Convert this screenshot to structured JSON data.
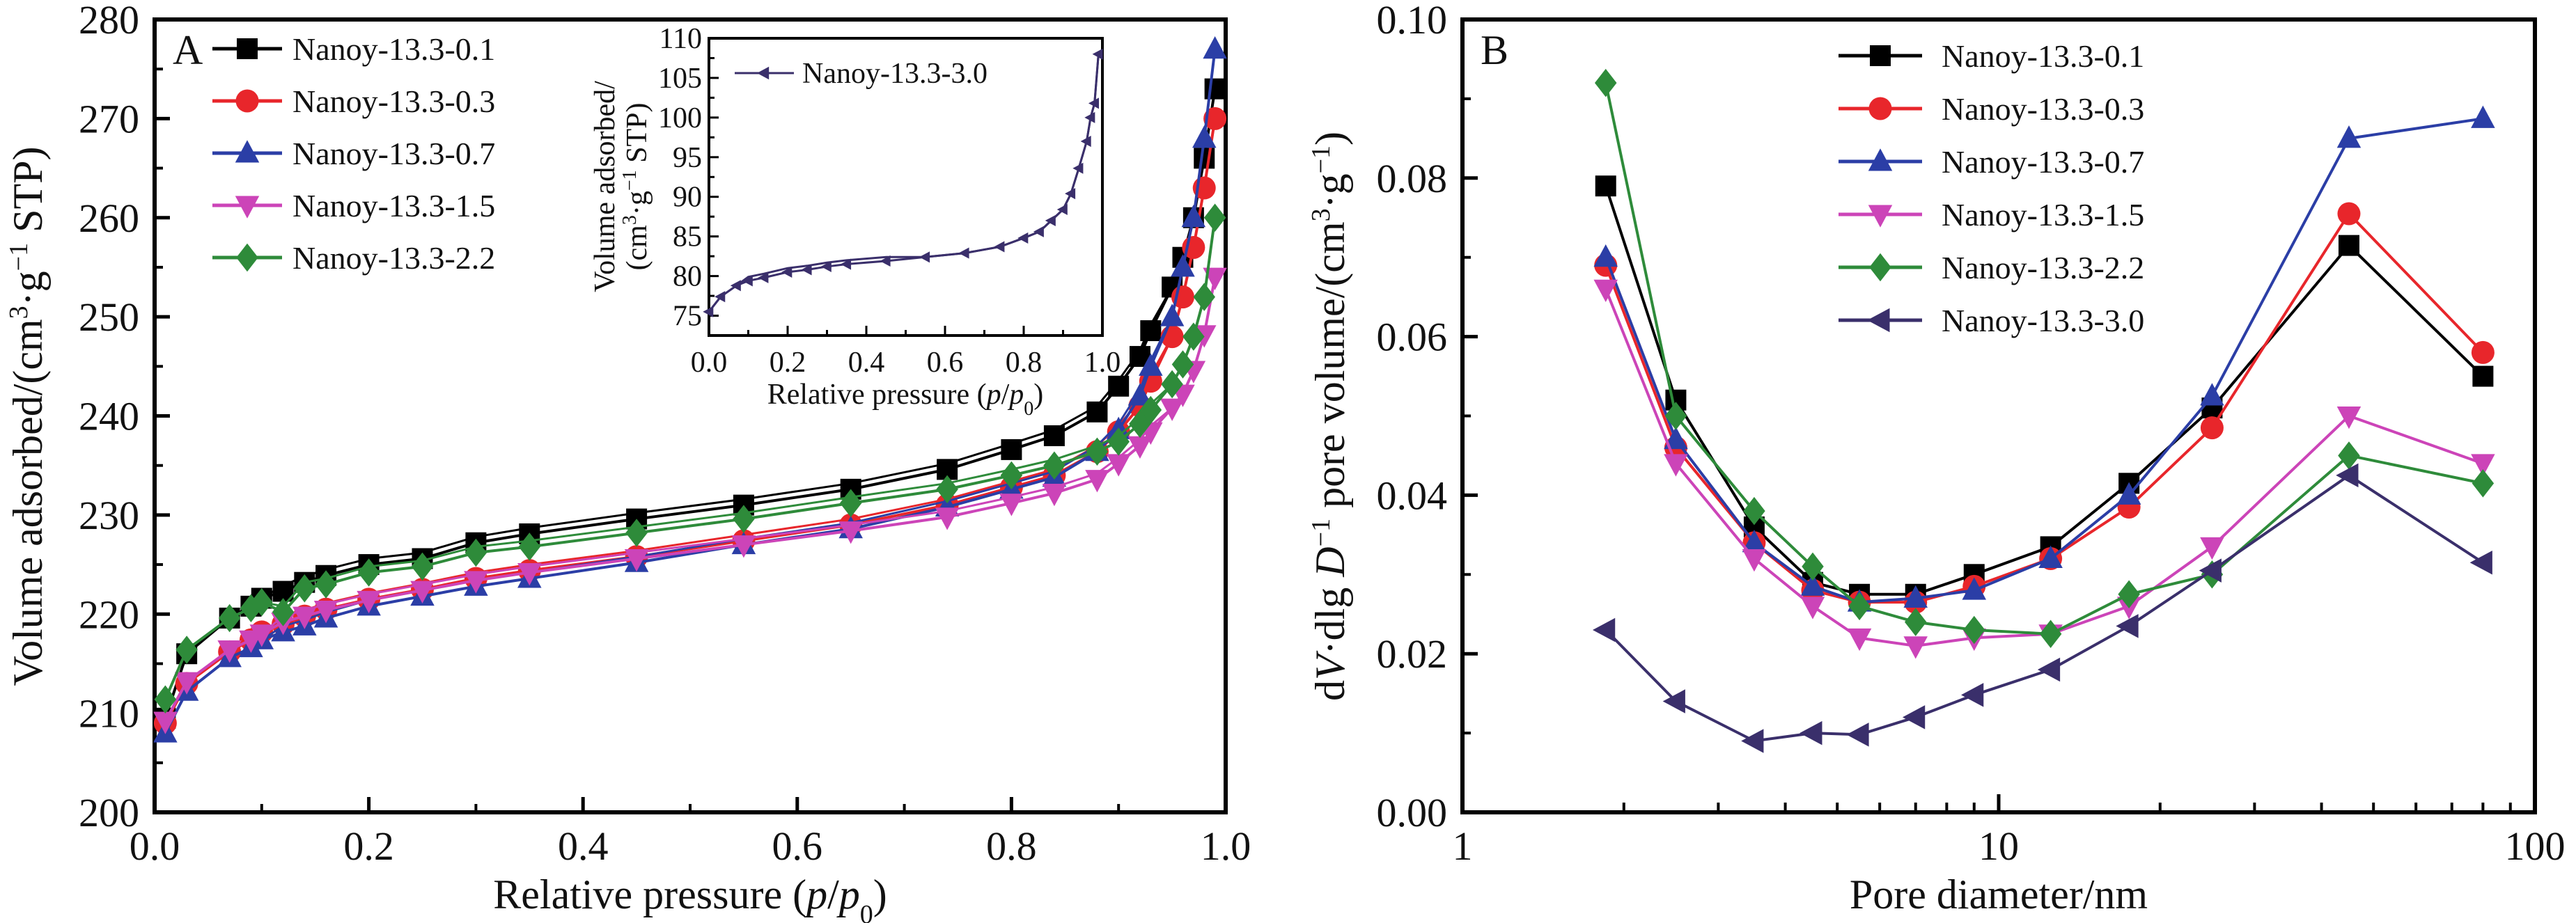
{
  "figure": {
    "panels": [
      "A",
      "B"
    ]
  },
  "chart_data": [
    {
      "panel": "A",
      "type": "line",
      "title": "",
      "xlabel": "Relative pressure (p/p0)",
      "xlabel_parts": {
        "main": "Relative pressure (",
        "italic1": "p",
        "slash": "/",
        "italic2": "p",
        "sub": "0",
        "close": ")"
      },
      "ylabel": "Volume adsorbed/(cm3·g-1 STP)",
      "ylabel_parts": {
        "main": "Volume adsorbed/(cm",
        "sup1": "3",
        "mid": "·g",
        "sup2": "−1",
        "end": " STP)"
      },
      "xlim": [
        0.0,
        1.0
      ],
      "ylim": [
        200,
        280
      ],
      "xticks": [
        "0.0",
        "0.2",
        "0.4",
        "0.6",
        "0.8",
        "1.0"
      ],
      "xtick_values": [
        0.0,
        0.2,
        0.4,
        0.6,
        0.8,
        1.0
      ],
      "yticks": [
        "200",
        "210",
        "220",
        "230",
        "240",
        "250",
        "260",
        "270",
        "280"
      ],
      "ytick_values": [
        200,
        210,
        220,
        230,
        240,
        250,
        260,
        270,
        280
      ],
      "legend_position": "top-left",
      "grid": false,
      "series": [
        {
          "name": "Nanoy-13.3-0.1",
          "color": "#000000",
          "marker": "square",
          "x": [
            0.01,
            0.03,
            0.07,
            0.09,
            0.1,
            0.12,
            0.14,
            0.16,
            0.2,
            0.25,
            0.3,
            0.35,
            0.45,
            0.55,
            0.65,
            0.74,
            0.8,
            0.84,
            0.88,
            0.9,
            0.92,
            0.93,
            0.95,
            0.96,
            0.97,
            0.98,
            0.99
          ],
          "y": [
            209.5,
            216.0,
            219.6,
            220.8,
            221.6,
            222.3,
            223.2,
            223.9,
            225.0,
            225.6,
            227.2,
            228.1,
            229.6,
            231.0,
            232.6,
            234.6,
            236.6,
            238.0,
            240.4,
            243.0,
            246.0,
            248.6,
            253.0,
            256.0,
            260.0,
            266.0,
            273.0
          ]
        },
        {
          "name": "Nanoy-13.3-0.3",
          "color": "#e8262b",
          "marker": "circle",
          "x": [
            0.01,
            0.03,
            0.07,
            0.09,
            0.1,
            0.12,
            0.14,
            0.16,
            0.2,
            0.25,
            0.3,
            0.35,
            0.45,
            0.55,
            0.65,
            0.74,
            0.8,
            0.84,
            0.88,
            0.9,
            0.92,
            0.93,
            0.95,
            0.96,
            0.97,
            0.98,
            0.99
          ],
          "y": [
            209.0,
            213.0,
            216.2,
            217.4,
            218.2,
            219.0,
            219.8,
            220.5,
            221.5,
            222.5,
            223.6,
            224.4,
            225.8,
            227.4,
            229.0,
            231.0,
            232.8,
            234.0,
            236.4,
            238.4,
            241.0,
            243.5,
            248.0,
            252.0,
            257.0,
            263.0,
            270.0
          ]
        },
        {
          "name": "Nanoy-13.3-0.7",
          "color": "#2b3ea6",
          "marker": "triangle-up",
          "x": [
            0.01,
            0.03,
            0.07,
            0.09,
            0.1,
            0.12,
            0.14,
            0.16,
            0.2,
            0.25,
            0.3,
            0.35,
            0.45,
            0.55,
            0.65,
            0.74,
            0.8,
            0.84,
            0.88,
            0.9,
            0.92,
            0.93,
            0.95,
            0.96,
            0.97,
            0.98,
            0.99
          ],
          "y": [
            208.0,
            212.2,
            215.6,
            216.6,
            217.4,
            218.2,
            218.8,
            219.6,
            220.8,
            221.8,
            222.8,
            223.6,
            225.2,
            227.0,
            228.6,
            230.8,
            232.6,
            233.8,
            236.4,
            238.6,
            242.0,
            245.0,
            250.0,
            255.0,
            260.0,
            268.0,
            277.0
          ]
        },
        {
          "name": "Nanoy-13.3-1.5",
          "color": "#cc44b8",
          "marker": "triangle-down",
          "x": [
            0.01,
            0.03,
            0.07,
            0.09,
            0.1,
            0.12,
            0.14,
            0.16,
            0.2,
            0.25,
            0.3,
            0.35,
            0.45,
            0.55,
            0.65,
            0.74,
            0.8,
            0.84,
            0.88,
            0.9,
            0.92,
            0.93,
            0.95,
            0.96,
            0.97,
            0.98,
            0.99
          ],
          "y": [
            209.2,
            213.2,
            216.4,
            217.4,
            218.0,
            219.2,
            219.8,
            220.4,
            221.4,
            222.4,
            223.4,
            224.2,
            225.6,
            227.0,
            228.4,
            229.8,
            231.2,
            232.2,
            233.6,
            235.2,
            237.0,
            238.4,
            240.8,
            242.2,
            244.6,
            248.2,
            254.0
          ]
        },
        {
          "name": "Nanoy-13.3-2.2",
          "color": "#2e8b3a",
          "marker": "diamond",
          "x": [
            0.01,
            0.03,
            0.07,
            0.09,
            0.1,
            0.12,
            0.14,
            0.16,
            0.2,
            0.25,
            0.3,
            0.35,
            0.45,
            0.55,
            0.65,
            0.74,
            0.8,
            0.84,
            0.88,
            0.9,
            0.92,
            0.93,
            0.95,
            0.96,
            0.97,
            0.98,
            0.99
          ],
          "y": [
            211.4,
            216.4,
            219.6,
            220.6,
            221.2,
            220.2,
            222.6,
            223.0,
            224.2,
            224.8,
            226.2,
            226.8,
            228.2,
            229.6,
            231.2,
            232.6,
            234.0,
            235.0,
            236.4,
            237.4,
            239.2,
            240.6,
            243.2,
            245.2,
            248.0,
            252.0,
            260.0
          ]
        }
      ],
      "inset": {
        "type": "line",
        "xlabel": "Relative pressure (p/p0)",
        "ylabel_line1": "Volume adsorbed/",
        "ylabel_line2_parts": {
          "open": "(cm",
          "sup1": "3",
          "mid": "·g",
          "sup2": "−1",
          "end": " STP)"
        },
        "xlim": [
          0.0,
          1.0
        ],
        "ylim": [
          72.5,
          110
        ],
        "xticks": [
          "0.0",
          "0.2",
          "0.4",
          "0.6",
          "0.8",
          "1.0"
        ],
        "xtick_values": [
          0.0,
          0.2,
          0.4,
          0.6,
          0.8,
          1.0
        ],
        "yticks": [
          "75",
          "80",
          "85",
          "90",
          "95",
          "100",
          "105",
          "110"
        ],
        "ytick_values": [
          75,
          80,
          85,
          90,
          95,
          100,
          105,
          110
        ],
        "legend_position": "top-left",
        "series": [
          {
            "name": "Nanoy-13.3-3.0",
            "color": "#3a2f6b",
            "marker": "triangle-left",
            "x": [
              0.0,
              0.03,
              0.07,
              0.1,
              0.14,
              0.2,
              0.25,
              0.3,
              0.35,
              0.45,
              0.55,
              0.65,
              0.74,
              0.8,
              0.84,
              0.87,
              0.9,
              0.92,
              0.94,
              0.96,
              0.97,
              0.98,
              0.99
            ],
            "y": [
              75.5,
              77.4,
              78.8,
              79.4,
              79.8,
              80.5,
              80.8,
              81.2,
              81.5,
              81.9,
              82.4,
              82.9,
              83.7,
              84.8,
              85.6,
              87.0,
              88.4,
              90.4,
              93.6,
              97.0,
              100.0,
              101.8,
              108.0
            ]
          }
        ]
      }
    },
    {
      "panel": "B",
      "type": "line",
      "title": "",
      "xlabel": "Pore diameter/nm",
      "ylabel": "dV·dlg D-1 pore volume/(cm3·g-1)",
      "ylabel_parts": {
        "a": "d",
        "V": "V",
        "b": "·dlg ",
        "D": "D",
        "sup0": "−1",
        "c": " pore volume/(cm",
        "sup1": "3",
        "d": "·g",
        "sup2": "−1",
        "e": ")"
      },
      "xscale": "log",
      "xlim": [
        1,
        100
      ],
      "ylim": [
        0.0,
        0.1
      ],
      "xticks": [
        "1",
        "10",
        "100"
      ],
      "xtick_values": [
        1,
        10,
        100
      ],
      "yticks": [
        "0.00",
        "0.02",
        "0.04",
        "0.06",
        "0.08",
        "0.10"
      ],
      "ytick_values": [
        0.0,
        0.02,
        0.04,
        0.06,
        0.08,
        0.1
      ],
      "legend_position": "top-center",
      "grid": false,
      "series": [
        {
          "name": "Nanoy-13.3-0.1",
          "color": "#000000",
          "marker": "square",
          "x": [
            1.85,
            2.5,
            3.5,
            4.5,
            5.5,
            7.0,
            9.0,
            12.5,
            17.5,
            25.0,
            45.0,
            80.0
          ],
          "y": [
            0.079,
            0.052,
            0.036,
            0.029,
            0.0275,
            0.0275,
            0.03,
            0.0335,
            0.0415,
            0.051,
            0.0715,
            0.055
          ]
        },
        {
          "name": "Nanoy-13.3-0.3",
          "color": "#e8262b",
          "marker": "circle",
          "x": [
            1.85,
            2.5,
            3.5,
            4.5,
            5.5,
            7.0,
            9.0,
            12.5,
            17.5,
            25.0,
            45.0,
            80.0
          ],
          "y": [
            0.069,
            0.046,
            0.034,
            0.028,
            0.0265,
            0.0265,
            0.0285,
            0.032,
            0.0385,
            0.0485,
            0.0755,
            0.058
          ]
        },
        {
          "name": "Nanoy-13.3-0.7",
          "color": "#2b3ea6",
          "marker": "triangle-up",
          "x": [
            1.85,
            2.5,
            3.5,
            4.5,
            5.5,
            7.0,
            9.0,
            12.5,
            17.5,
            25.0,
            45.0,
            80.0
          ],
          "y": [
            0.07,
            0.047,
            0.034,
            0.0285,
            0.0265,
            0.027,
            0.028,
            0.032,
            0.04,
            0.0525,
            0.085,
            0.0875
          ]
        },
        {
          "name": "Nanoy-13.3-1.5",
          "color": "#cc44b8",
          "marker": "triangle-down",
          "x": [
            1.85,
            2.5,
            3.5,
            4.5,
            5.5,
            7.0,
            9.0,
            12.5,
            17.5,
            25.0,
            45.0,
            80.0
          ],
          "y": [
            0.066,
            0.044,
            0.032,
            0.026,
            0.022,
            0.021,
            0.022,
            0.0225,
            0.026,
            0.0335,
            0.05,
            0.044
          ]
        },
        {
          "name": "Nanoy-13.3-2.2",
          "color": "#2e8b3a",
          "marker": "diamond",
          "x": [
            1.85,
            2.5,
            3.5,
            4.5,
            5.5,
            7.0,
            9.0,
            12.5,
            17.5,
            25.0,
            45.0,
            80.0
          ],
          "y": [
            0.092,
            0.05,
            0.038,
            0.031,
            0.026,
            0.024,
            0.023,
            0.0225,
            0.0275,
            0.03,
            0.045,
            0.0415
          ]
        },
        {
          "name": "Nanoy-13.3-3.0",
          "color": "#3a2f6b",
          "marker": "triangle-left",
          "x": [
            1.85,
            2.5,
            3.5,
            4.5,
            5.5,
            7.0,
            9.0,
            12.5,
            17.5,
            25.0,
            45.0,
            80.0
          ],
          "y": [
            0.023,
            0.014,
            0.009,
            0.01,
            0.0098,
            0.012,
            0.0148,
            0.018,
            0.0235,
            0.0305,
            0.0425,
            0.0315
          ]
        }
      ]
    }
  ]
}
